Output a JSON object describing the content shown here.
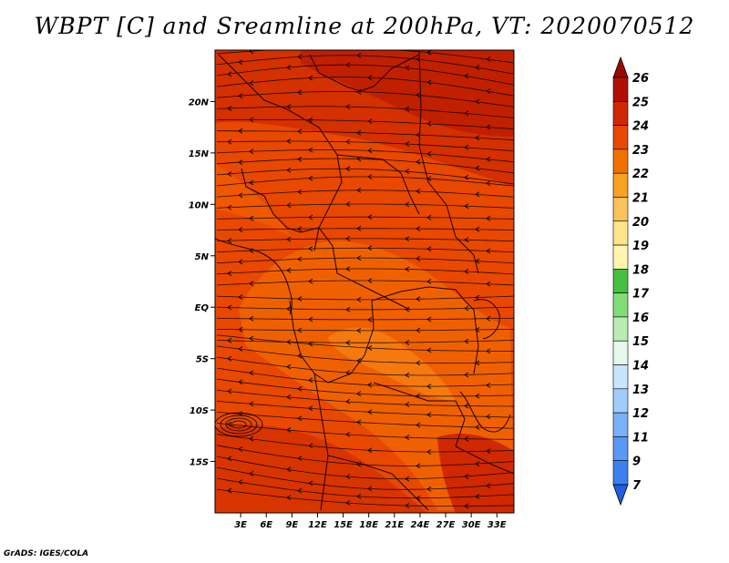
{
  "title": "WBPT [C] and Sreamline at 200hPa, VT: 2020070512",
  "credit": "GrADS: IGES/COLA",
  "map": {
    "lon_range": [
      0,
      35
    ],
    "lat_range": [
      -20,
      25
    ],
    "lat_ticks": [
      {
        "value": 20,
        "label": "20N"
      },
      {
        "value": 15,
        "label": "15N"
      },
      {
        "value": 10,
        "label": "10N"
      },
      {
        "value": 5,
        "label": "5N"
      },
      {
        "value": 0,
        "label": "EQ"
      },
      {
        "value": -5,
        "label": "5S"
      },
      {
        "value": -10,
        "label": "10S"
      },
      {
        "value": -15,
        "label": "15S"
      }
    ],
    "lon_ticks": [
      {
        "value": 3,
        "label": "3E"
      },
      {
        "value": 6,
        "label": "6E"
      },
      {
        "value": 9,
        "label": "9E"
      },
      {
        "value": 12,
        "label": "12E"
      },
      {
        "value": 15,
        "label": "15E"
      },
      {
        "value": 18,
        "label": "18E"
      },
      {
        "value": 21,
        "label": "21E"
      },
      {
        "value": 24,
        "label": "24E"
      },
      {
        "value": 27,
        "label": "27E"
      },
      {
        "value": 30,
        "label": "30E"
      },
      {
        "value": 33,
        "label": "33E"
      }
    ]
  },
  "colorbar": {
    "levels": [
      "7",
      "9",
      "11",
      "12",
      "13",
      "14",
      "15",
      "16",
      "17",
      "18",
      "19",
      "20",
      "21",
      "22",
      "23",
      "24",
      "25",
      "26"
    ],
    "colors": [
      "#1f5fe0",
      "#3c80f0",
      "#5a98f5",
      "#78b0fa",
      "#a0ccfc",
      "#c8e4fe",
      "#e6f8ea",
      "#b8ecb0",
      "#82dc78",
      "#46c040",
      "#fff5b0",
      "#fde38a",
      "#f9c25a",
      "#f7a220",
      "#f07000",
      "#e84800",
      "#d02800",
      "#b01000",
      "#9c0800"
    ]
  }
}
